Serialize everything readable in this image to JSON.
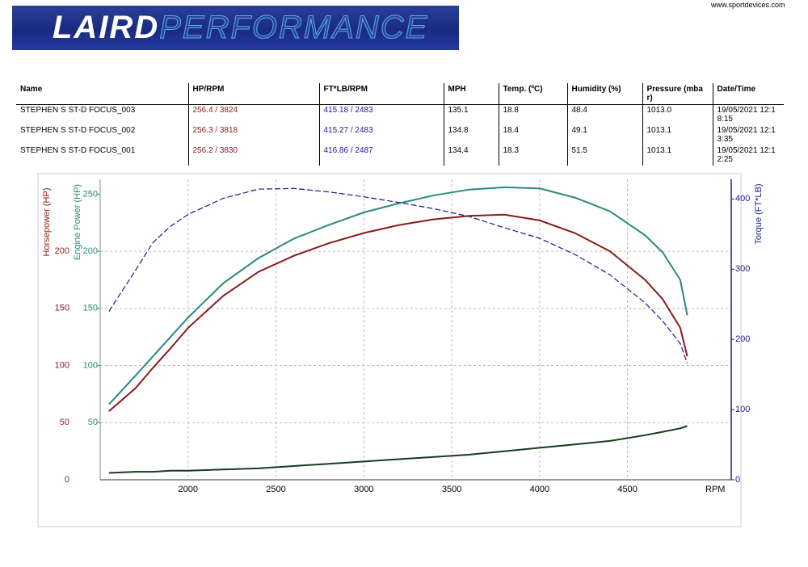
{
  "header": {
    "logo_left": "LAIRD",
    "logo_right": "PERFORMANCE",
    "site": "www.sportdevices.com"
  },
  "table": {
    "columns": [
      "Name",
      "HP/RPM",
      "FT*LB/RPM",
      "MPH",
      "Temp. (ºC)",
      "Humidity (%)",
      "Pressure (mbar)",
      "Date/Time"
    ],
    "rows": [
      [
        "STEPHEN S ST-D FOCUS_003",
        "256.4 / 3824",
        "415.18 / 2483",
        "135.1",
        "18.8",
        "48.4",
        "1013.0",
        "19/05/2021 12:18:15"
      ],
      [
        "STEPHEN S ST-D FOCUS_002",
        "256.3 / 3818",
        "415.27 / 2483",
        "134.8",
        "18.4",
        "49.1",
        "1013.1",
        "19/05/2021 12:13:35"
      ],
      [
        "STEPHEN S ST-D FOCUS_001",
        "256.2 / 3830",
        "416.86 / 2487",
        "134.4",
        "18.3",
        "51.5",
        "1013.1",
        "19/05/2021 12:12:25"
      ]
    ]
  },
  "chart_data": {
    "type": "line",
    "xlabel": "RPM",
    "ylabel": "Horsepower (HP)",
    "y3label": "Engine Power (HP)",
    "y2label": "Torque (FT*LB)",
    "x": [
      1550,
      1700,
      1800,
      1900,
      2000,
      2200,
      2400,
      2600,
      2800,
      3000,
      3200,
      3400,
      3600,
      3800,
      4000,
      4200,
      4400,
      4600,
      4700,
      4800,
      4840
    ],
    "xlim": [
      1500,
      5090
    ],
    "xticks": [
      2000,
      2500,
      3000,
      3500,
      4000,
      4500
    ],
    "ylim": [
      0,
      263
    ],
    "yticks": [
      0,
      50,
      100,
      150,
      200
    ],
    "ycolor": "#8b1a1a",
    "y3lim": [
      0,
      263
    ],
    "y3ticks": [
      50,
      100,
      150,
      200,
      250
    ],
    "y3color": "#2a8a7a",
    "y2lim": [
      0,
      428
    ],
    "y2ticks": [
      0,
      100,
      200,
      300,
      400
    ],
    "y2color": "#1a1a8a",
    "grid": true,
    "series": [
      {
        "color": "#8b1a1a",
        "axis": "y",
        "values": [
          60,
          80,
          98,
          115,
          133,
          161,
          182,
          196,
          207,
          216,
          223,
          228,
          231,
          232,
          227,
          216,
          200,
          175,
          158,
          133,
          108
        ]
      },
      {
        "color": "#2a8a7a",
        "axis": "y3",
        "values": [
          66,
          91,
          108,
          125,
          142,
          172,
          194,
          211,
          223,
          234,
          242,
          249,
          254,
          256,
          255,
          247,
          235,
          214,
          199,
          175,
          144
        ]
      },
      {
        "color": "#1a1a8a",
        "axis": "y2",
        "dashed": true,
        "values": [
          240,
          298,
          338,
          361,
          378,
          401,
          414,
          415,
          410,
          403,
          395,
          386,
          375,
          359,
          344,
          321,
          292,
          252,
          226,
          194,
          166
        ]
      },
      {
        "color": "#1a3a1a",
        "axis": "y",
        "values": [
          6,
          7,
          7,
          8,
          8,
          9,
          10,
          12,
          14,
          16,
          18,
          20,
          22,
          25,
          28,
          31,
          34,
          39,
          42,
          45,
          47
        ]
      }
    ]
  }
}
